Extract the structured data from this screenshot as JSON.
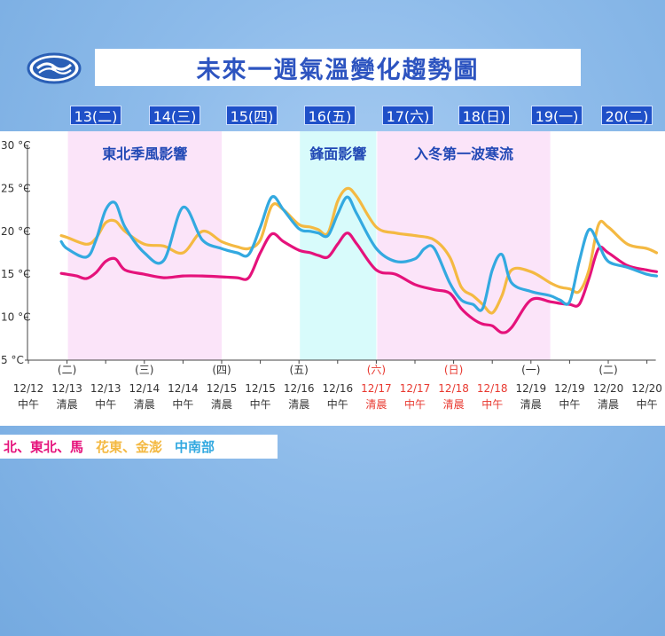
{
  "title": "未來一週氣溫變化趨勢圖",
  "day_tabs": [
    "13(二)",
    "14(三)",
    "15(四)",
    "16(五)",
    "17(六)",
    "18(日)",
    "19(一)",
    "20(二)"
  ],
  "colors": {
    "north": "#e5127b",
    "east": "#f4b942",
    "central_south": "#33a9e0",
    "text_red": "#e8382f",
    "region_pink": "#fbe4f9",
    "region_cyan": "#d8fbfb"
  },
  "chart_data": {
    "type": "line",
    "ylim": [
      5,
      30
    ],
    "yticks": [
      "5 °C",
      "10 °C",
      "15 °C",
      "20 °C",
      "25 °C",
      "30 °C"
    ],
    "x_labels": [
      {
        "date": "12/12",
        "period": "中午",
        "weekday": "",
        "red": false
      },
      {
        "date": "12/13",
        "period": "清晨",
        "weekday": "(二)",
        "red": false
      },
      {
        "date": "12/13",
        "period": "中午",
        "weekday": "",
        "red": false
      },
      {
        "date": "12/14",
        "period": "清晨",
        "weekday": "(三)",
        "red": false
      },
      {
        "date": "12/14",
        "period": "中午",
        "weekday": "",
        "red": false
      },
      {
        "date": "12/15",
        "period": "清晨",
        "weekday": "(四)",
        "red": false
      },
      {
        "date": "12/15",
        "period": "中午",
        "weekday": "",
        "red": false
      },
      {
        "date": "12/16",
        "period": "清晨",
        "weekday": "(五)",
        "red": false
      },
      {
        "date": "12/16",
        "period": "中午",
        "weekday": "",
        "red": false
      },
      {
        "date": "12/17",
        "period": "清晨",
        "weekday": "(六)",
        "red": true
      },
      {
        "date": "12/17",
        "period": "中午",
        "weekday": "",
        "red": true
      },
      {
        "date": "12/18",
        "period": "清晨",
        "weekday": "(日)",
        "red": true
      },
      {
        "date": "12/18",
        "period": "中午",
        "weekday": "",
        "red": true
      },
      {
        "date": "12/19",
        "period": "清晨",
        "weekday": "(一)",
        "red": false
      },
      {
        "date": "12/19",
        "period": "中午",
        "weekday": "",
        "red": false
      },
      {
        "date": "12/20",
        "period": "清晨",
        "weekday": "(二)",
        "red": false
      },
      {
        "date": "12/20",
        "period": "中午",
        "weekday": "",
        "red": false
      }
    ],
    "regions": [
      {
        "label": "東北季風影響",
        "from": 1,
        "to": 5,
        "color": "pink"
      },
      {
        "label": "鋒面影響",
        "from": 7,
        "to": 9,
        "color": "cyan"
      },
      {
        "label": "入冬第一波寒流",
        "from": 9,
        "to": 13.5,
        "color": "pink"
      }
    ],
    "series": [
      {
        "name": "北、東北、馬",
        "color_key": "north",
        "x": [
          0.85,
          1.0,
          1.25,
          1.5,
          1.75,
          2.0,
          2.25,
          2.5,
          3.0,
          3.5,
          4.0,
          4.5,
          5.0,
          5.4,
          5.7,
          6.0,
          6.3,
          6.6,
          7.0,
          7.3,
          7.5,
          7.75,
          8.0,
          8.25,
          8.5,
          9.0,
          9.5,
          10.0,
          10.5,
          10.9,
          11.2,
          11.5,
          11.75,
          12.0,
          12.25,
          12.5,
          13.0,
          13.5,
          13.75,
          14.0,
          14.25,
          14.5,
          14.75,
          15.0,
          15.5,
          16.0,
          16.25
        ],
        "y": [
          15.1,
          15.0,
          14.8,
          14.5,
          15.2,
          16.5,
          16.8,
          15.5,
          15.0,
          14.6,
          14.8,
          14.8,
          14.7,
          14.6,
          14.6,
          17.5,
          19.7,
          18.8,
          17.8,
          17.5,
          17.2,
          17.0,
          18.5,
          19.8,
          18.5,
          15.5,
          15.0,
          13.8,
          13.2,
          12.8,
          11.0,
          9.8,
          9.2,
          9.0,
          8.2,
          8.8,
          12.0,
          11.8,
          11.6,
          11.5,
          11.5,
          14.5,
          18.0,
          17.5,
          16.0,
          15.5,
          15.3
        ]
      },
      {
        "name": "花東、金澎",
        "color_key": "east",
        "x": [
          0.85,
          1.0,
          1.5,
          1.75,
          2.0,
          2.25,
          2.5,
          3.0,
          3.5,
          4.0,
          4.5,
          5.0,
          5.4,
          5.7,
          6.0,
          6.3,
          6.6,
          7.0,
          7.3,
          7.5,
          7.75,
          8.0,
          8.25,
          8.5,
          9.0,
          9.5,
          10.0,
          10.5,
          10.9,
          11.2,
          11.5,
          11.75,
          12.0,
          12.25,
          12.5,
          13.0,
          13.5,
          13.75,
          14.0,
          14.25,
          14.5,
          14.75,
          15.0,
          15.5,
          16.0,
          16.25
        ],
        "y": [
          19.5,
          19.3,
          18.5,
          19.2,
          21.0,
          21.2,
          20.0,
          18.5,
          18.3,
          17.5,
          20.0,
          18.8,
          18.2,
          18.0,
          19.0,
          23.0,
          22.5,
          20.8,
          20.5,
          20.2,
          19.8,
          23.5,
          25.0,
          24.0,
          20.5,
          19.8,
          19.5,
          19.0,
          17.0,
          13.5,
          12.5,
          11.5,
          10.5,
          12.5,
          15.5,
          15.3,
          14.0,
          13.5,
          13.3,
          13.0,
          15.5,
          20.8,
          20.5,
          18.5,
          18.0,
          17.5
        ]
      },
      {
        "name": "中南部",
        "color_key": "central_south",
        "x": [
          0.85,
          1.0,
          1.5,
          1.75,
          2.0,
          2.25,
          2.5,
          3.0,
          3.5,
          4.0,
          4.5,
          5.0,
          5.4,
          5.7,
          6.0,
          6.3,
          6.6,
          7.0,
          7.3,
          7.5,
          7.75,
          8.0,
          8.25,
          8.5,
          9.0,
          9.5,
          10.0,
          10.25,
          10.5,
          10.9,
          11.2,
          11.5,
          11.75,
          12.0,
          12.25,
          12.5,
          13.0,
          13.5,
          13.75,
          14.0,
          14.25,
          14.5,
          14.75,
          15.0,
          15.5,
          16.0,
          16.25
        ],
        "y": [
          18.8,
          18.0,
          17.0,
          19.0,
          22.5,
          23.3,
          20.5,
          17.5,
          16.6,
          22.8,
          19.0,
          18.0,
          17.5,
          17.3,
          20.5,
          24.0,
          22.5,
          20.3,
          20.0,
          19.8,
          19.5,
          22.0,
          24.0,
          22.0,
          18.0,
          16.5,
          16.8,
          18.0,
          18.0,
          14.0,
          12.0,
          11.5,
          11.0,
          15.5,
          17.3,
          14.0,
          13.0,
          12.5,
          12.0,
          11.8,
          16.5,
          20.2,
          18.5,
          16.5,
          15.8,
          15.0,
          14.8
        ]
      }
    ]
  },
  "legend": {
    "north": "北、東北、馬",
    "sep1": "、",
    "east": "花東、金澎",
    "central_south": "中南部"
  }
}
